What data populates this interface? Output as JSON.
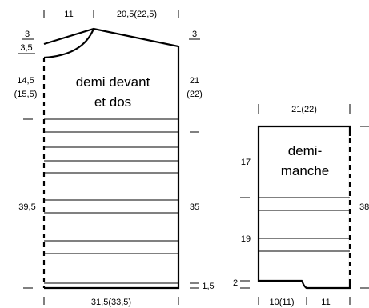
{
  "body_panel": {
    "title_line1": "demi devant",
    "title_line2": "et dos",
    "top_left_width": "11",
    "top_right_width": "20,5(22,5)",
    "left_shoulder_top": "3",
    "left_shoulder_bottom": "3,5",
    "right_shoulder": "3",
    "left_upper_height": "14,5",
    "left_upper_height_alt": "(15,5)",
    "right_upper_height": "21",
    "right_upper_height_alt": "(22)",
    "left_lower_height": "39,5",
    "right_lower_height": "35",
    "rib_height": "1,5",
    "bottom_width": "31,5(33,5)"
  },
  "sleeve_panel": {
    "title_line1": "demi-",
    "title_line2": "manche",
    "top_width": "21(22)",
    "left_upper_height": "17",
    "left_lower_height": "19",
    "right_height": "38",
    "rib_height": "2",
    "bottom_left_width": "10(11)",
    "bottom_right_width": "11"
  }
}
